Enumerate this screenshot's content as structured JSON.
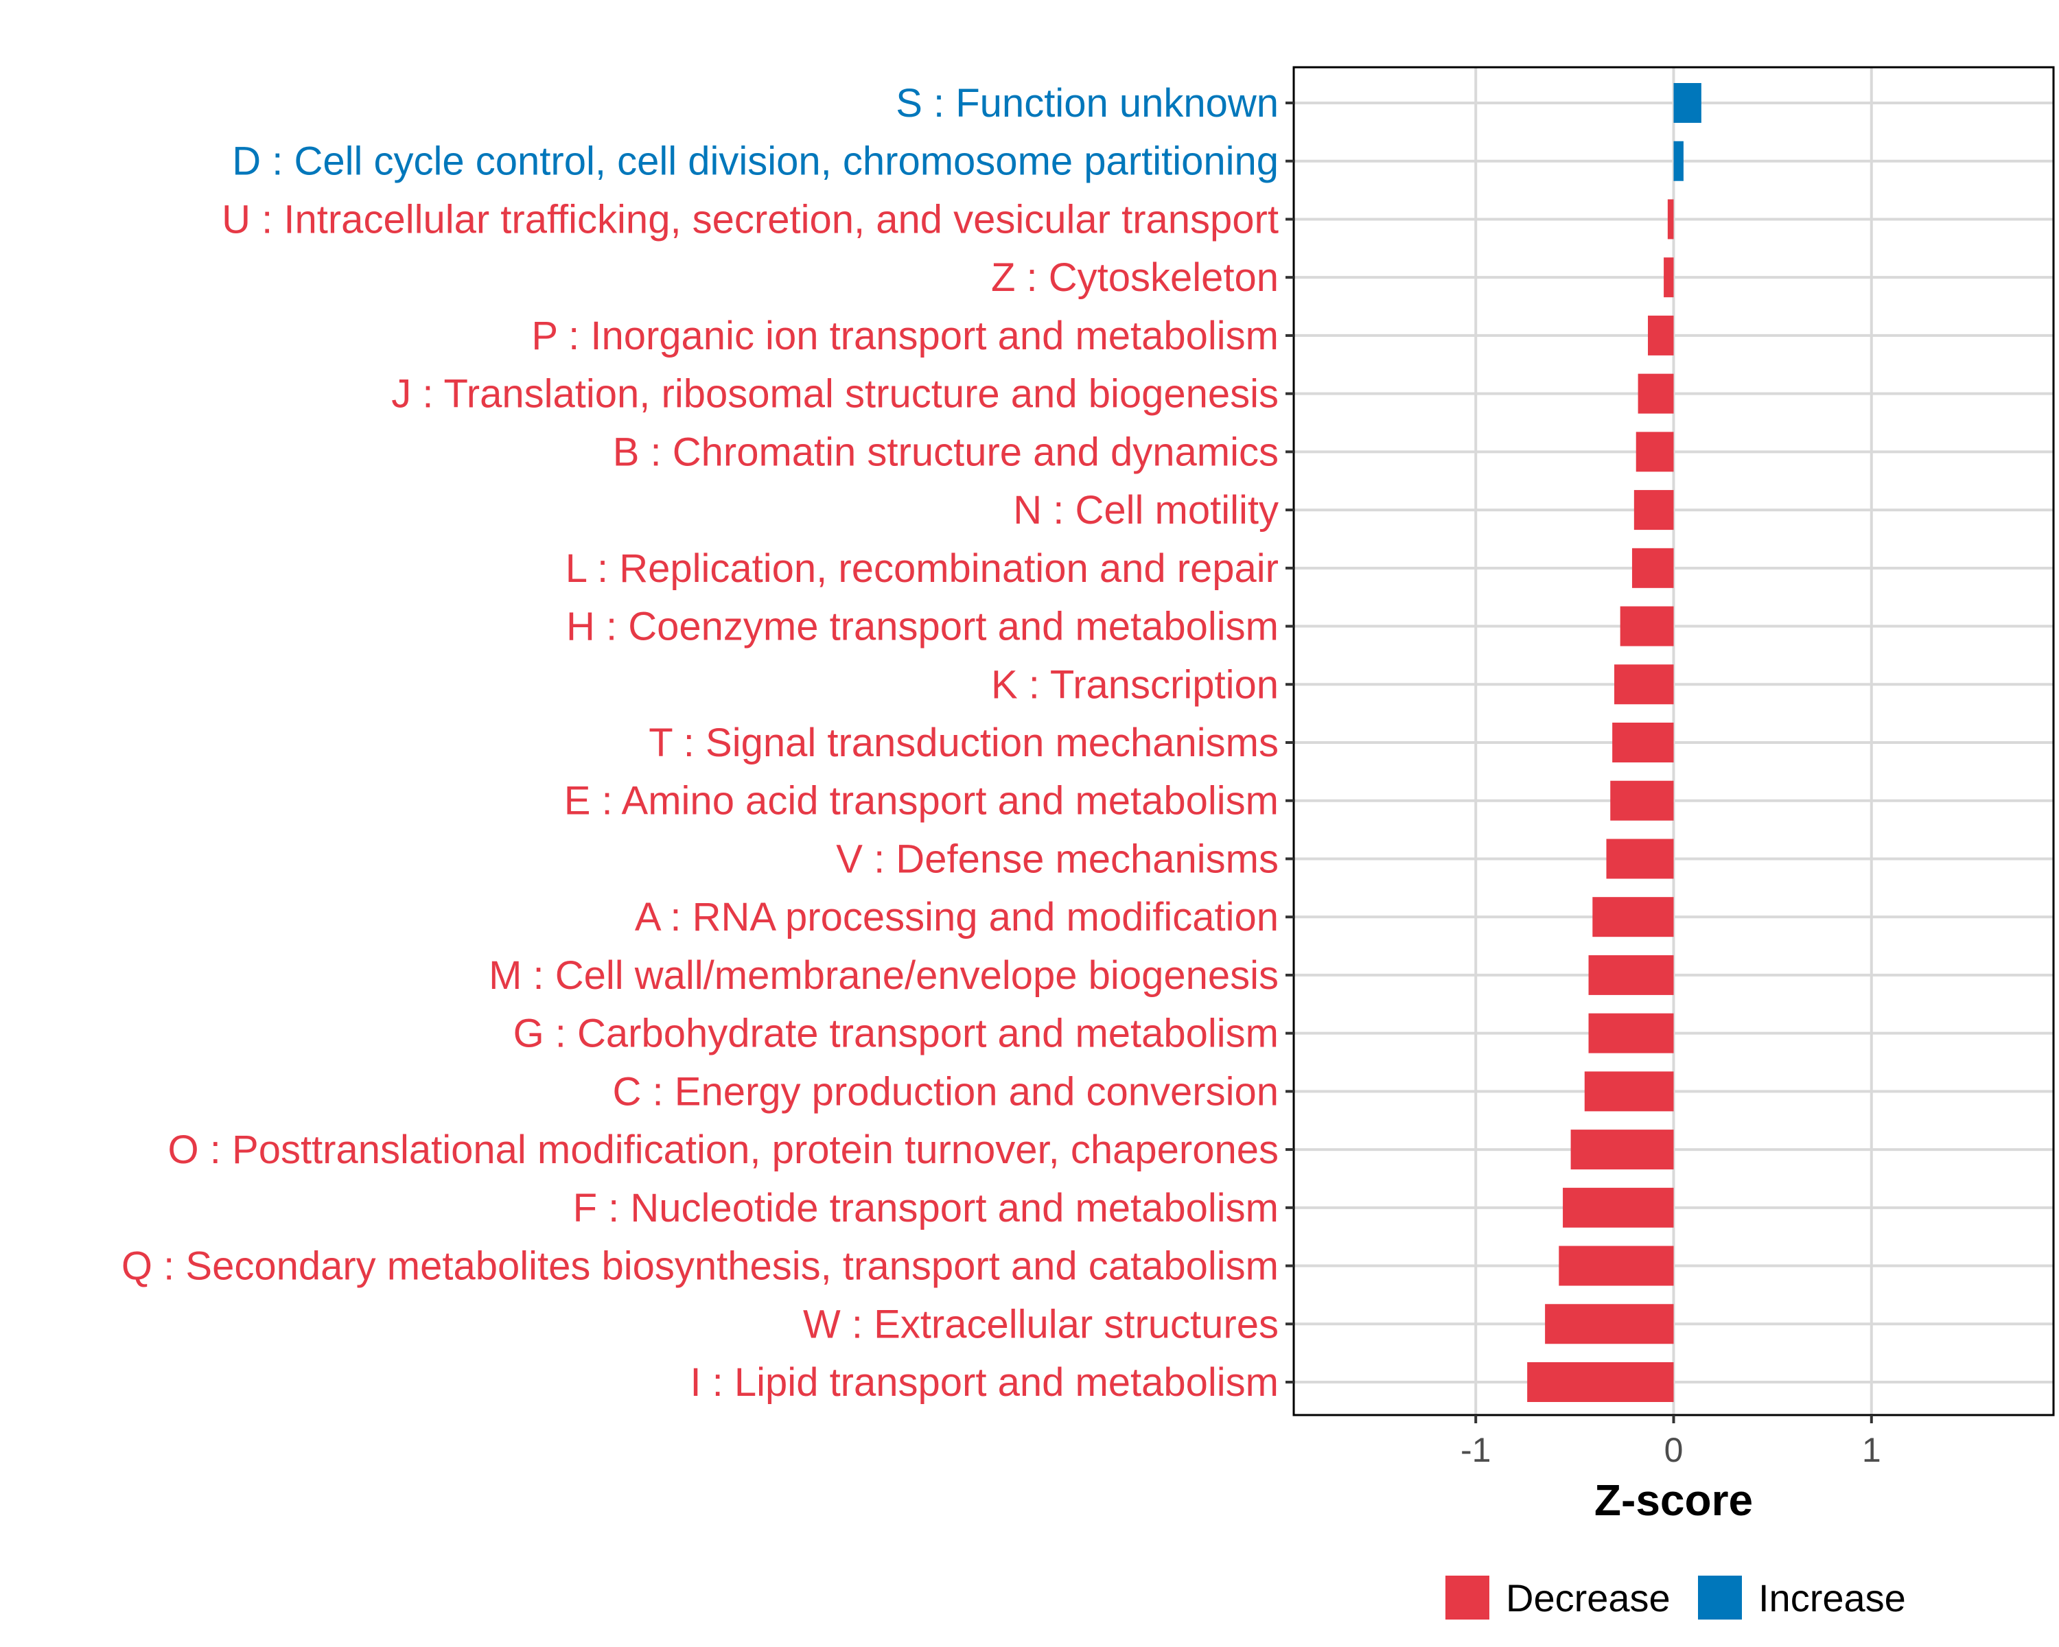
{
  "colors": {
    "decrease": "#E63946",
    "increase": "#0077BB",
    "grid": "#D9D9D9",
    "panel_border": "#000000"
  },
  "chart_data": {
    "type": "bar",
    "orientation": "horizontal",
    "categories": [
      "S : Function unknown",
      "D : Cell cycle control, cell division, chromosome partitioning",
      "U : Intracellular trafficking, secretion, and vesicular transport",
      "Z : Cytoskeleton",
      "P : Inorganic ion transport and metabolism",
      "J : Translation, ribosomal structure and biogenesis",
      "B : Chromatin structure and dynamics",
      "N : Cell motility",
      "L : Replication, recombination and repair",
      "H : Coenzyme transport and metabolism",
      "K : Transcription",
      "T : Signal transduction mechanisms",
      "E : Amino acid transport and metabolism",
      "V : Defense mechanisms",
      "A : RNA processing and modification",
      "M : Cell wall/membrane/envelope biogenesis",
      "G : Carbohydrate transport and metabolism",
      "C : Energy production and conversion",
      "O : Posttranslational modification, protein turnover, chaperones",
      "F : Nucleotide transport and metabolism",
      "Q : Secondary metabolites biosynthesis, transport and catabolism",
      "W : Extracellular structures",
      "I : Lipid transport and metabolism"
    ],
    "values": [
      0.14,
      0.05,
      -0.03,
      -0.05,
      -0.13,
      -0.18,
      -0.19,
      -0.2,
      -0.21,
      -0.27,
      -0.3,
      -0.31,
      -0.32,
      -0.34,
      -0.41,
      -0.43,
      -0.43,
      -0.45,
      -0.52,
      -0.56,
      -0.58,
      -0.65,
      -0.74
    ],
    "groups": [
      "Increase",
      "Increase",
      "Decrease",
      "Decrease",
      "Decrease",
      "Decrease",
      "Decrease",
      "Decrease",
      "Decrease",
      "Decrease",
      "Decrease",
      "Decrease",
      "Decrease",
      "Decrease",
      "Decrease",
      "Decrease",
      "Decrease",
      "Decrease",
      "Decrease",
      "Decrease",
      "Decrease",
      "Decrease",
      "Decrease"
    ],
    "xlabel": "Z-score",
    "xlim": [
      -1.92,
      1.92
    ],
    "xticks": [
      -1,
      0,
      1
    ],
    "xtick_labels": [
      "-1",
      "0",
      "1"
    ],
    "grid": true,
    "legend": {
      "position": "bottom",
      "entries": [
        {
          "label": "Decrease",
          "color": "#E63946"
        },
        {
          "label": "Increase",
          "color": "#0077BB"
        }
      ]
    }
  }
}
